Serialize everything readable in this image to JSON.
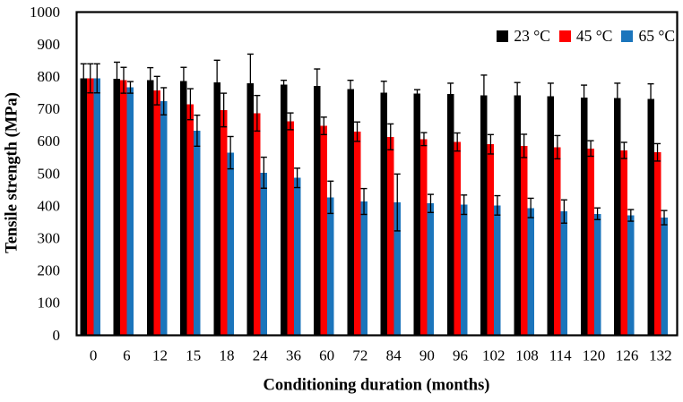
{
  "chart_data": {
    "type": "bar",
    "title": "",
    "xlabel": "Conditioning duration (months)",
    "ylabel": "Tensile strength (MPa)",
    "ylim": [
      0,
      1000
    ],
    "ytick_step": 100,
    "grid": false,
    "frame": true,
    "error_bars": true,
    "legend_position": "top-right-inside",
    "axis_color": "#000000",
    "background_color": "#ffffff",
    "categories": [
      "0",
      "6",
      "12",
      "15",
      "18",
      "24",
      "36",
      "60",
      "72",
      "84",
      "90",
      "96",
      "102",
      "108",
      "114",
      "120",
      "126",
      "132"
    ],
    "series": [
      {
        "name": "23 °C",
        "color": "#000000",
        "values": [
          795,
          793,
          790,
          787,
          783,
          780,
          776,
          772,
          762,
          751,
          748,
          746,
          743,
          742,
          740,
          736,
          734,
          731
        ],
        "errors": [
          45,
          52,
          38,
          42,
          68,
          90,
          13,
          52,
          27,
          35,
          12,
          34,
          62,
          40,
          40,
          38,
          46,
          47
        ]
      },
      {
        "name": "45 °C",
        "color": "#FF0000",
        "values": [
          795,
          789,
          757,
          715,
          697,
          687,
          662,
          648,
          630,
          614,
          607,
          598,
          591,
          586,
          582,
          578,
          572,
          566
        ],
        "errors": [
          45,
          40,
          44,
          48,
          52,
          55,
          26,
          27,
          30,
          40,
          20,
          28,
          30,
          36,
          36,
          24,
          25,
          27
        ]
      },
      {
        "name": "65 °C",
        "color": "#1B75BC",
        "values": [
          795,
          767,
          724,
          633,
          565,
          503,
          487,
          427,
          414,
          411,
          408,
          404,
          402,
          394,
          383,
          376,
          371,
          364
        ],
        "errors": [
          45,
          18,
          42,
          48,
          50,
          48,
          30,
          50,
          40,
          88,
          28,
          30,
          30,
          30,
          36,
          18,
          18,
          22
        ]
      }
    ]
  }
}
